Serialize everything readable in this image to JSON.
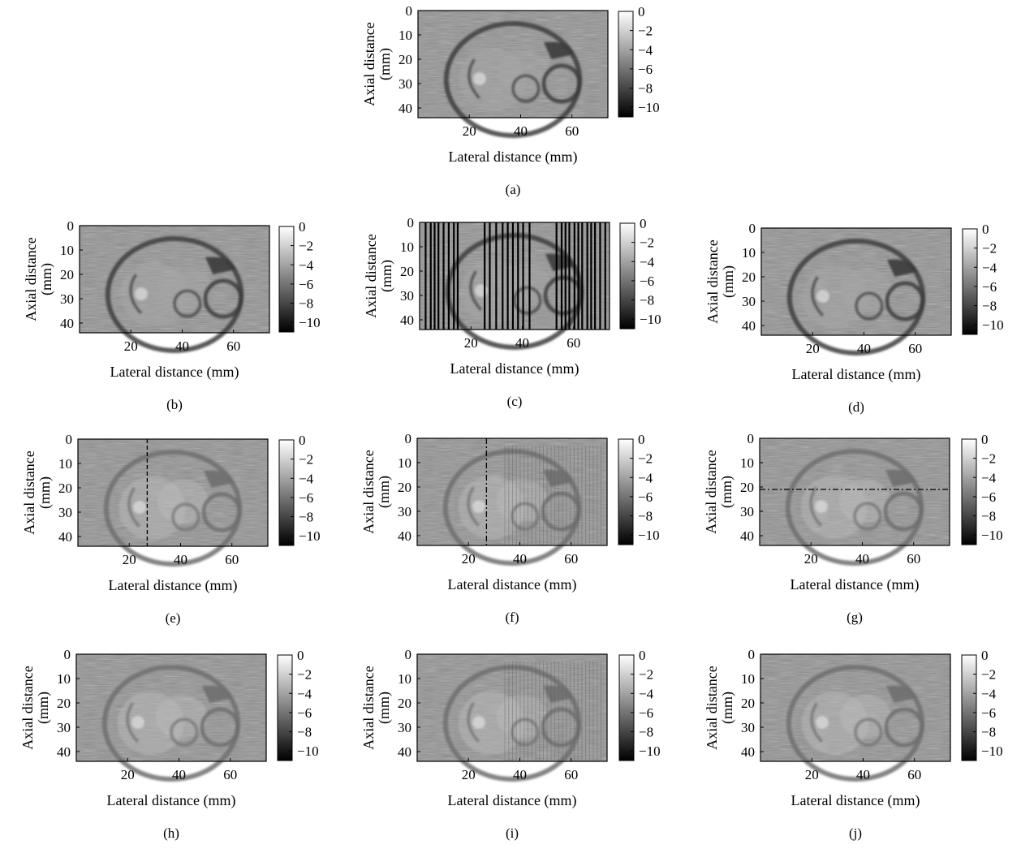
{
  "figure": {
    "x_axis_label": "Lateral distance (mm)",
    "y_axis_label_line1": "Axial distance",
    "y_axis_label_line2": "(mm)",
    "x_ticks": [
      20,
      40,
      60
    ],
    "y_ticks": [
      0,
      10,
      20,
      30,
      40
    ],
    "x_range_mm": [
      0,
      74
    ],
    "y_range_mm": [
      0,
      44
    ],
    "colorbar_ticks": [
      0,
      -2,
      -4,
      -6,
      -8,
      -10
    ],
    "colorbar_range": [
      -11,
      0
    ],
    "colormap": "gray",
    "colors": {
      "background": "#ffffff",
      "axis": "#000000",
      "image_mid": "#8c8c8c"
    }
  },
  "panels": [
    {
      "label": "(a)",
      "variant": "full_reference"
    },
    {
      "label": "(b)",
      "variant": "full"
    },
    {
      "label": "(c)",
      "variant": "missing_scanlines"
    },
    {
      "label": "(d)",
      "variant": "full"
    },
    {
      "label": "(e)",
      "variant": "reconstruction",
      "overlay": "vertical dashed line at lateral 27 mm"
    },
    {
      "label": "(f)",
      "variant": "reconstruction_artifacts",
      "overlay": "vertical dash-dot line at lateral 27 mm"
    },
    {
      "label": "(g)",
      "variant": "reconstruction",
      "overlay": "horizontal dash-dot line at axial 21 mm"
    },
    {
      "label": "(h)",
      "variant": "reconstruction"
    },
    {
      "label": "(i)",
      "variant": "reconstruction_artifacts"
    },
    {
      "label": "(j)",
      "variant": "reconstruction"
    }
  ]
}
